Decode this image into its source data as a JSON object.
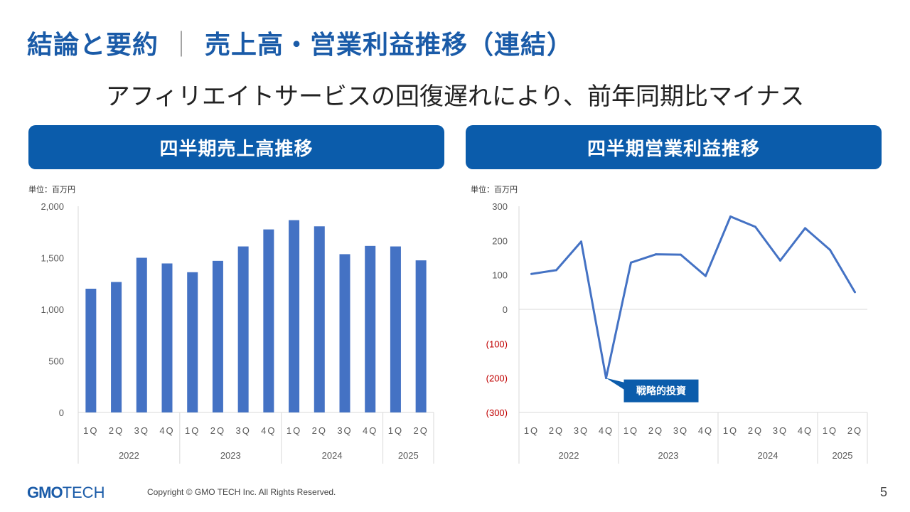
{
  "slide": {
    "title_part1": "結論と要約",
    "title_separator": "｜",
    "title_part2": "売上高・営業利益推移（連結）",
    "subtitle": "アフィリエイトサービスの回復遅れにより、前年同期比マイナス",
    "page_number": "5",
    "logo_gmo": "GMO",
    "logo_tech": "TECH",
    "copyright": "Copyright © GMO TECH Inc. All Rights Reserved."
  },
  "colors": {
    "brand": "#1a5ba8",
    "header_bg": "#0b5cab",
    "series": "#4472c4",
    "negative_tick": "#c00000",
    "callout_bg": "#0b5cab"
  },
  "chart_data": [
    {
      "type": "bar",
      "title": "四半期売上高推移",
      "unit_label": "単位：百万円",
      "quarters": [
        "1Q",
        "2Q",
        "3Q",
        "4Q",
        "1Q",
        "2Q",
        "3Q",
        "4Q",
        "1Q",
        "2Q",
        "3Q",
        "4Q",
        "1Q",
        "2Q"
      ],
      "years": [
        {
          "label": "2022",
          "count": 4
        },
        {
          "label": "2023",
          "count": 4
        },
        {
          "label": "2024",
          "count": 4
        },
        {
          "label": "2025",
          "count": 2
        }
      ],
      "values": [
        1200,
        1265,
        1500,
        1445,
        1360,
        1470,
        1610,
        1775,
        1865,
        1805,
        1535,
        1615,
        1610,
        1475
      ],
      "ylim": [
        0,
        2000
      ],
      "yticks": [
        {
          "value": 0,
          "label": "0"
        },
        {
          "value": 500,
          "label": "500"
        },
        {
          "value": 1000,
          "label": "1,000"
        },
        {
          "value": 1500,
          "label": "1,500"
        },
        {
          "value": 2000,
          "label": "2,000"
        }
      ],
      "grid": false
    },
    {
      "type": "line",
      "title": "四半期営業利益推移",
      "unit_label": "単位：百万円",
      "quarters": [
        "1Q",
        "2Q",
        "3Q",
        "4Q",
        "1Q",
        "2Q",
        "3Q",
        "4Q",
        "1Q",
        "2Q",
        "3Q",
        "4Q",
        "1Q",
        "2Q"
      ],
      "years": [
        {
          "label": "2022",
          "count": 4
        },
        {
          "label": "2023",
          "count": 4
        },
        {
          "label": "2024",
          "count": 4
        },
        {
          "label": "2025",
          "count": 2
        }
      ],
      "values": [
        103,
        114,
        197,
        -200,
        136,
        160,
        159,
        97,
        270,
        240,
        142,
        236,
        173,
        50
      ],
      "ylim": [
        -300,
        300
      ],
      "yticks": [
        {
          "value": 300,
          "label": "300"
        },
        {
          "value": 200,
          "label": "200"
        },
        {
          "value": 100,
          "label": "100"
        },
        {
          "value": 0,
          "label": "0"
        },
        {
          "value": -100,
          "label": "(100)"
        },
        {
          "value": -200,
          "label": "(200)"
        },
        {
          "value": -300,
          "label": "(300)"
        }
      ],
      "annotation": {
        "index": 3,
        "text": "戦略的投資"
      },
      "grid": false
    }
  ]
}
